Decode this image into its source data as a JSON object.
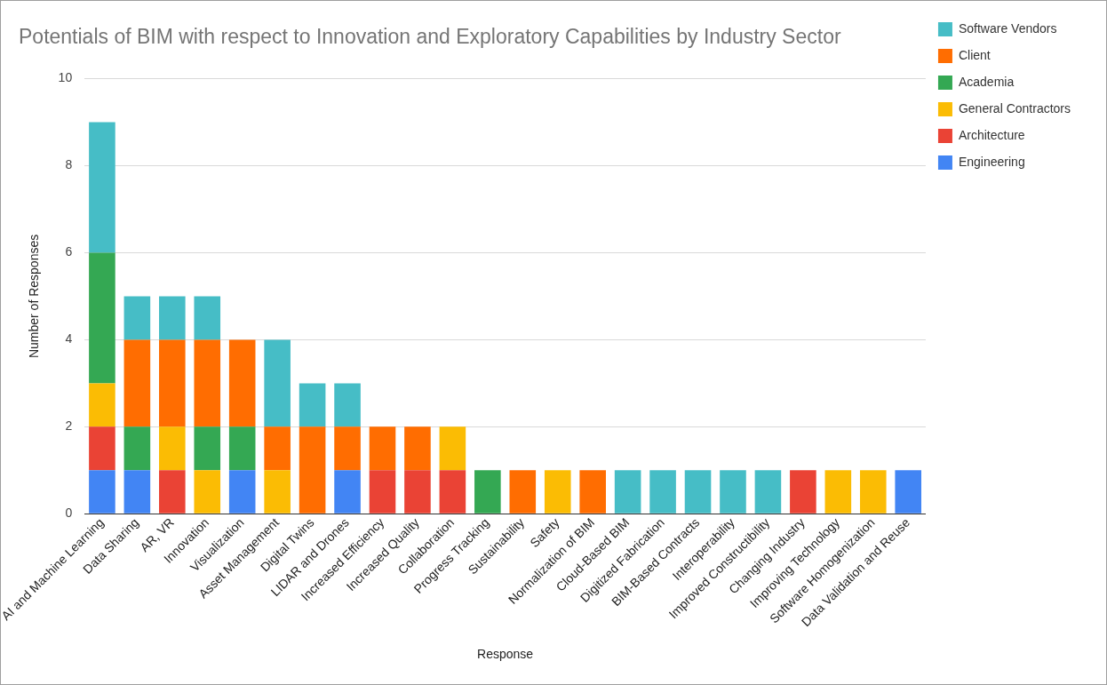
{
  "chart_data": {
    "type": "bar",
    "title": "Potentials of BIM with respect to Innovation and Exploratory Capabilities by Industry Sector",
    "xlabel": "Response",
    "ylabel": "Number of Responses",
    "categories": [
      "AI and Machine Learning",
      "Data Sharing",
      "AR, VR",
      "Innovation",
      "Visualization",
      "Asset Management",
      "Digital Twins",
      "LIDAR and Drones",
      "Increased Efficiency",
      "Increased Quality",
      "Collaboration",
      "Progress Tracking",
      "Sustainability",
      "Safety",
      "Normalization of BIM",
      "Cloud-Based BIM",
      "Digitized Fabrication",
      "BIM-Based Contracts",
      "Interoperability",
      "Improved Constructibility",
      "Changing Industry",
      "Improving Technology",
      "Software Homogenization",
      "Data Validation and Reuse"
    ],
    "stacked": true,
    "series": [
      {
        "name": "Engineering",
        "color": "#4285f4",
        "values": [
          1,
          1,
          0,
          0,
          1,
          0,
          0,
          1,
          0,
          0,
          0,
          0,
          0,
          0,
          0,
          0,
          0,
          0,
          0,
          0,
          0,
          0,
          0,
          1
        ]
      },
      {
        "name": "Architecture",
        "color": "#ea4335",
        "values": [
          1,
          0,
          1,
          0,
          0,
          0,
          0,
          0,
          1,
          1,
          1,
          0,
          0,
          0,
          0,
          0,
          0,
          0,
          0,
          0,
          1,
          0,
          0,
          0
        ]
      },
      {
        "name": "General Contractors",
        "color": "#fbbc04",
        "values": [
          1,
          0,
          1,
          1,
          0,
          1,
          0,
          0,
          0,
          0,
          1,
          0,
          0,
          1,
          0,
          0,
          0,
          0,
          0,
          0,
          0,
          1,
          1,
          0
        ]
      },
      {
        "name": "Academia",
        "color": "#34a853",
        "values": [
          3,
          1,
          0,
          1,
          1,
          0,
          0,
          0,
          0,
          0,
          0,
          1,
          0,
          0,
          0,
          0,
          0,
          0,
          0,
          0,
          0,
          0,
          0,
          0
        ]
      },
      {
        "name": "Client",
        "color": "#ff6d01",
        "values": [
          0,
          2,
          2,
          2,
          2,
          1,
          2,
          1,
          1,
          1,
          0,
          0,
          1,
          0,
          1,
          0,
          0,
          0,
          0,
          0,
          0,
          0,
          0,
          0
        ]
      },
      {
        "name": "Software Vendors",
        "color": "#46bdc6",
        "values": [
          3,
          1,
          1,
          1,
          0,
          2,
          1,
          1,
          0,
          0,
          0,
          0,
          0,
          0,
          0,
          1,
          1,
          1,
          1,
          1,
          0,
          0,
          0,
          0
        ]
      }
    ],
    "ylim": [
      0,
      10
    ],
    "yticks": [
      0,
      2,
      4,
      6,
      8,
      10
    ],
    "grid": "y",
    "legend": "top right"
  }
}
